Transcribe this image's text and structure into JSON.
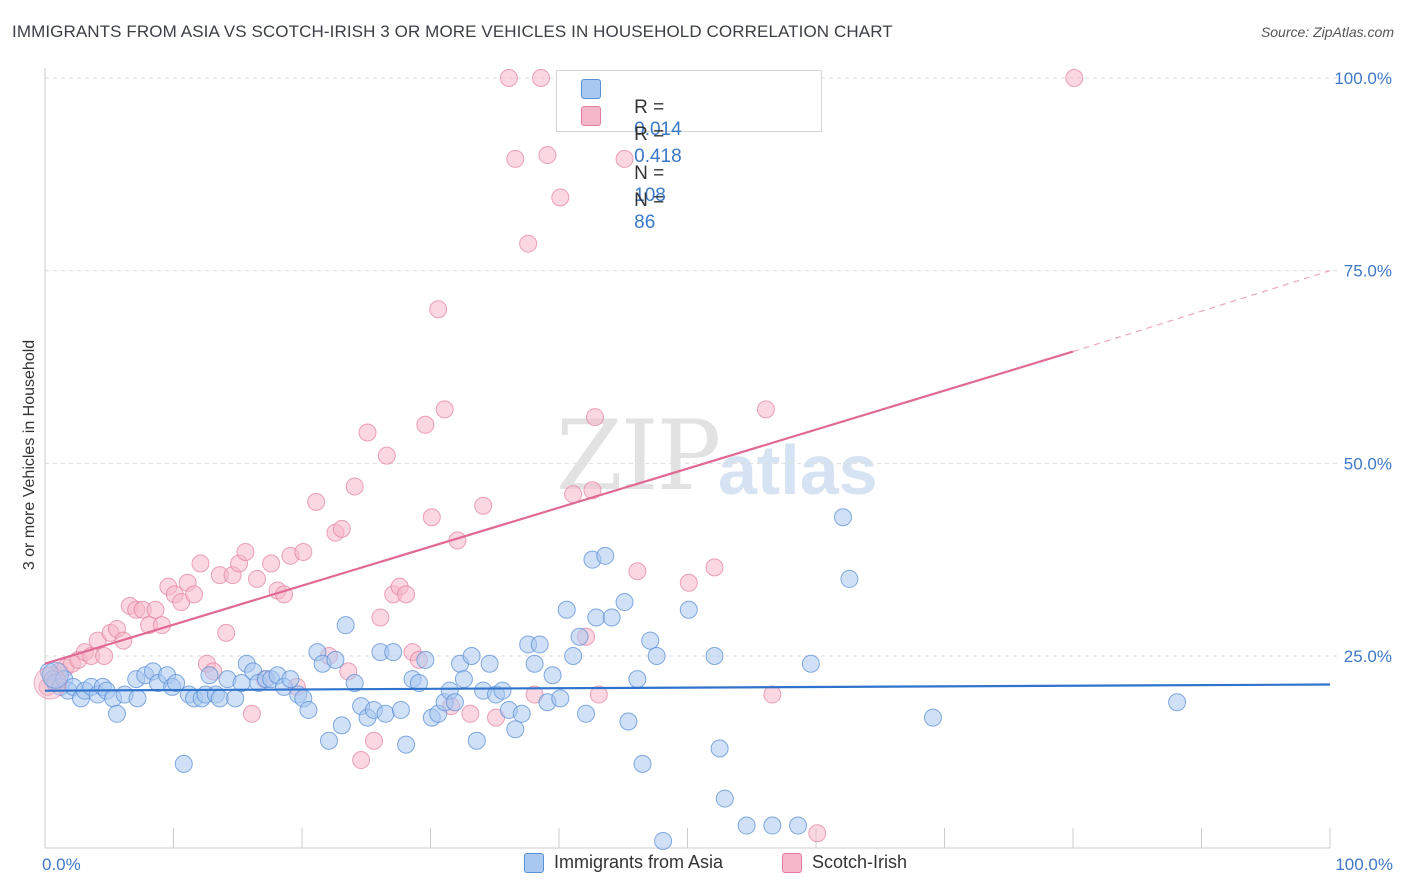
{
  "title": "IMMIGRANTS FROM ASIA VS SCOTCH-IRISH 3 OR MORE VEHICLES IN HOUSEHOLD CORRELATION CHART",
  "source": "Source: ZipAtlas.com",
  "watermark": {
    "zip": "ZIP",
    "atlas": "atlas"
  },
  "legend": {
    "rows": [
      {
        "r_label": "R =",
        "r_value": "0.014",
        "n_label": "N =",
        "n_value": "108",
        "color": "#a9c8f0"
      },
      {
        "r_label": "R =",
        "r_value": "0.418",
        "n_label": "N =",
        "n_value": "86",
        "color": "#f5b6c9"
      }
    ]
  },
  "bottom_legend": [
    "Immigrants from Asia",
    "Scotch-Irish"
  ],
  "colors": {
    "blue_fill": "#a9c8f0",
    "blue_stroke": "#5b8fd6",
    "blue_line": "#2f73cc",
    "pink_fill": "#f5b6c9",
    "pink_stroke": "#e27fa0",
    "pink_line": "#e06a95",
    "axis_text": "#3f78c8",
    "grid": "#dddddd"
  },
  "chart_data": {
    "type": "scatter",
    "title": "IMMIGRANTS FROM ASIA VS SCOTCH-IRISH 3 OR MORE VEHICLES IN HOUSEHOLD CORRELATION CHART",
    "xlabel": "",
    "ylabel": "3 or more Vehicles in Household",
    "xlim": [
      0,
      100
    ],
    "ylim": [
      0,
      102
    ],
    "x_tick_labels": [
      "0.0%",
      "100.0%"
    ],
    "y_ticks": [
      25,
      50,
      75,
      100
    ],
    "y_tick_labels": [
      "25.0%",
      "50.0%",
      "75.0%",
      "100.0%"
    ],
    "grid": true,
    "legend_position": "top-center",
    "series": [
      {
        "name": "Immigrants from Asia",
        "R": 0.014,
        "N": 108,
        "trend": {
          "x0": 0,
          "y0": 20.5,
          "x1": 100,
          "y1": 21.3
        },
        "points": [
          [
            0.3,
            23
          ],
          [
            0.6,
            22
          ],
          [
            0.8,
            21.5
          ],
          [
            1.2,
            21
          ],
          [
            1.5,
            22
          ],
          [
            1.8,
            20.5
          ],
          [
            2.2,
            21
          ],
          [
            2.8,
            19.5
          ],
          [
            3.1,
            20.5
          ],
          [
            3.6,
            21
          ],
          [
            4.1,
            20
          ],
          [
            4.5,
            21
          ],
          [
            4.8,
            20.5
          ],
          [
            5.3,
            19.5
          ],
          [
            5.6,
            17.5
          ],
          [
            6.2,
            20
          ],
          [
            7.2,
            19.5
          ],
          [
            7.1,
            22
          ],
          [
            7.8,
            22.5
          ],
          [
            8.4,
            23
          ],
          [
            8.8,
            21.5
          ],
          [
            9.5,
            22.5
          ],
          [
            9.9,
            21
          ],
          [
            10.2,
            21.5
          ],
          [
            10.8,
            11
          ],
          [
            11.2,
            20
          ],
          [
            11.6,
            19.5
          ],
          [
            12.2,
            19.5
          ],
          [
            12.5,
            20
          ],
          [
            12.8,
            22.5
          ],
          [
            13.3,
            20
          ],
          [
            13.6,
            19.5
          ],
          [
            14.2,
            22
          ],
          [
            14.8,
            19.5
          ],
          [
            15.3,
            21.5
          ],
          [
            15.7,
            24
          ],
          [
            16.2,
            23
          ],
          [
            16.6,
            21.5
          ],
          [
            17.2,
            22
          ],
          [
            17.6,
            22
          ],
          [
            18.1,
            22.5
          ],
          [
            18.6,
            21
          ],
          [
            19.1,
            22
          ],
          [
            19.7,
            20
          ],
          [
            20.1,
            19.5
          ],
          [
            20.5,
            18
          ],
          [
            21.2,
            25.5
          ],
          [
            21.6,
            24
          ],
          [
            22.1,
            14
          ],
          [
            22.6,
            24.5
          ],
          [
            23.1,
            16
          ],
          [
            23.4,
            29
          ],
          [
            24.1,
            21.5
          ],
          [
            24.6,
            18.5
          ],
          [
            25.1,
            17
          ],
          [
            25.6,
            18
          ],
          [
            26.1,
            25.5
          ],
          [
            26.5,
            17.5
          ],
          [
            27.1,
            25.5
          ],
          [
            27.7,
            18
          ],
          [
            28.1,
            13.5
          ],
          [
            28.6,
            22
          ],
          [
            29.1,
            21.5
          ],
          [
            29.6,
            24.5
          ],
          [
            30.1,
            17
          ],
          [
            30.6,
            17.5
          ],
          [
            31.1,
            19
          ],
          [
            31.5,
            20.5
          ],
          [
            31.9,
            19
          ],
          [
            32.3,
            24
          ],
          [
            32.6,
            22
          ],
          [
            33.2,
            25
          ],
          [
            33.6,
            14
          ],
          [
            34.1,
            20.5
          ],
          [
            34.6,
            24
          ],
          [
            35.1,
            20
          ],
          [
            35.6,
            20.5
          ],
          [
            36.1,
            18
          ],
          [
            36.6,
            15.5
          ],
          [
            37.1,
            17.5
          ],
          [
            37.6,
            26.5
          ],
          [
            38.1,
            24
          ],
          [
            38.5,
            26.5
          ],
          [
            39.1,
            19
          ],
          [
            39.5,
            22.5
          ],
          [
            40.1,
            19.5
          ],
          [
            40.6,
            31
          ],
          [
            41.1,
            25
          ],
          [
            41.6,
            27.5
          ],
          [
            42.1,
            17.5
          ],
          [
            42.6,
            37.5
          ],
          [
            42.9,
            30
          ],
          [
            43.6,
            38
          ],
          [
            44.1,
            30
          ],
          [
            45.1,
            32
          ],
          [
            45.4,
            16.5
          ],
          [
            46.1,
            22
          ],
          [
            46.5,
            11
          ],
          [
            47.1,
            27
          ],
          [
            47.6,
            25
          ],
          [
            50.1,
            31
          ],
          [
            52.1,
            25
          ],
          [
            52.5,
            13
          ],
          [
            52.9,
            6.5
          ],
          [
            54.6,
            3
          ],
          [
            56.6,
            3
          ],
          [
            58.6,
            3
          ],
          [
            59.6,
            24
          ],
          [
            62.1,
            43
          ],
          [
            62.6,
            35
          ],
          [
            69.1,
            17
          ],
          [
            88.1,
            19
          ],
          [
            48.1,
            1
          ]
        ]
      },
      {
        "name": "Scotch-Irish",
        "R": 0.418,
        "N": 86,
        "trend": {
          "x0": 0,
          "y0": 24,
          "x1": 80,
          "y1": 64.5,
          "dashed_to_x": 100,
          "dashed_to_y": 75
        },
        "points": [
          [
            0.2,
            21
          ],
          [
            0.6,
            22
          ],
          [
            1.1,
            23
          ],
          [
            1.6,
            23.5
          ],
          [
            2.1,
            24
          ],
          [
            2.6,
            24.5
          ],
          [
            3.1,
            25.5
          ],
          [
            3.6,
            25
          ],
          [
            4.1,
            27
          ],
          [
            4.6,
            25
          ],
          [
            5.1,
            28
          ],
          [
            5.6,
            28.5
          ],
          [
            6.1,
            27
          ],
          [
            6.6,
            31.5
          ],
          [
            7.1,
            31
          ],
          [
            7.6,
            31
          ],
          [
            8.1,
            29
          ],
          [
            8.6,
            31
          ],
          [
            9.1,
            29
          ],
          [
            9.6,
            34
          ],
          [
            10.1,
            33
          ],
          [
            10.6,
            32
          ],
          [
            11.1,
            34.5
          ],
          [
            11.6,
            33
          ],
          [
            12.1,
            37
          ],
          [
            12.6,
            24
          ],
          [
            13.1,
            23
          ],
          [
            13.6,
            35.5
          ],
          [
            14.1,
            28
          ],
          [
            14.6,
            35.5
          ],
          [
            15.1,
            37
          ],
          [
            15.6,
            38.5
          ],
          [
            16.1,
            17.5
          ],
          [
            16.5,
            35
          ],
          [
            17.1,
            22
          ],
          [
            17.6,
            37
          ],
          [
            18.1,
            33.5
          ],
          [
            18.6,
            33
          ],
          [
            19.1,
            38
          ],
          [
            19.6,
            21
          ],
          [
            20.1,
            38.5
          ],
          [
            21.1,
            45
          ],
          [
            22.1,
            25
          ],
          [
            22.6,
            41
          ],
          [
            23.1,
            41.5
          ],
          [
            23.6,
            23
          ],
          [
            24.1,
            47
          ],
          [
            24.6,
            11.5
          ],
          [
            25.1,
            54
          ],
          [
            25.6,
            14
          ],
          [
            26.1,
            30
          ],
          [
            26.6,
            51
          ],
          [
            27.1,
            33
          ],
          [
            27.6,
            34
          ],
          [
            28.1,
            33
          ],
          [
            28.6,
            25.5
          ],
          [
            29.1,
            24.5
          ],
          [
            29.6,
            55
          ],
          [
            30.1,
            43
          ],
          [
            30.6,
            70
          ],
          [
            31.1,
            57
          ],
          [
            31.6,
            18.5
          ],
          [
            32.1,
            40
          ],
          [
            33.1,
            17.5
          ],
          [
            34.1,
            44.5
          ],
          [
            35.1,
            17
          ],
          [
            36.1,
            100
          ],
          [
            36.6,
            89.5
          ],
          [
            37.6,
            78.5
          ],
          [
            38.1,
            20
          ],
          [
            38.6,
            100
          ],
          [
            39.1,
            90
          ],
          [
            40.1,
            84.5
          ],
          [
            41.1,
            46
          ],
          [
            42.1,
            27.5
          ],
          [
            42.6,
            46.5
          ],
          [
            43.1,
            20
          ],
          [
            45.1,
            89.5
          ],
          [
            46.1,
            36
          ],
          [
            50.1,
            34.5
          ],
          [
            52.1,
            36.5
          ],
          [
            56.1,
            57
          ],
          [
            56.6,
            20
          ],
          [
            60.1,
            2
          ],
          [
            80.1,
            100
          ],
          [
            42.8,
            56
          ]
        ]
      }
    ]
  }
}
